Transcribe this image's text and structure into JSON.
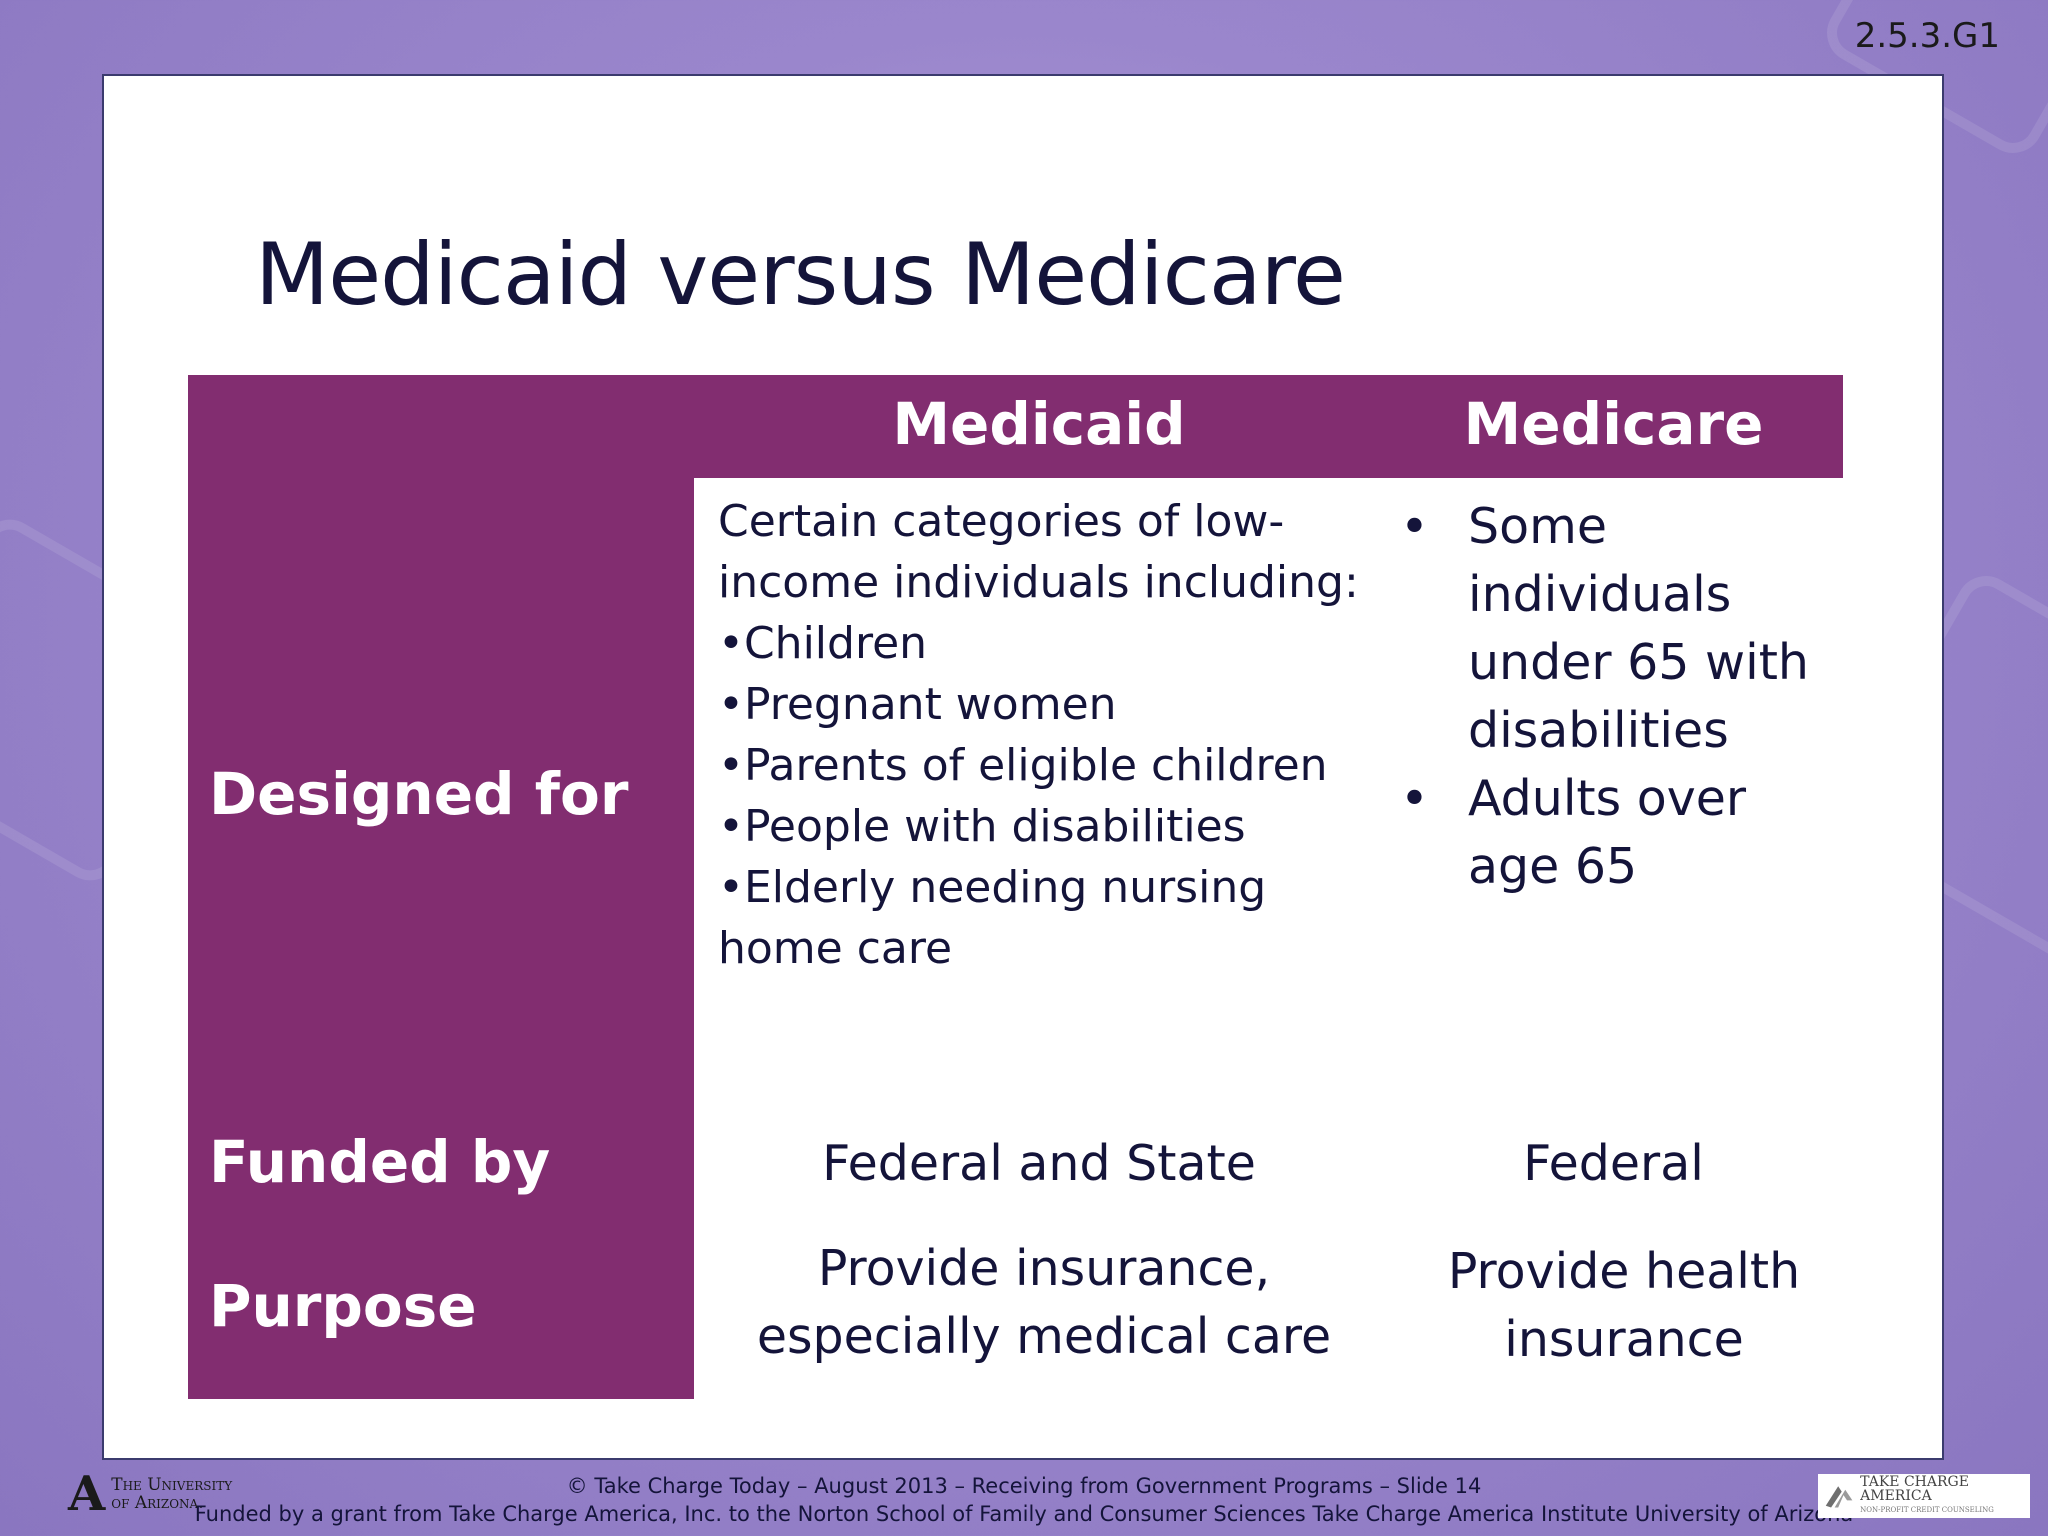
{
  "slide_id": "2.5.3.G1",
  "title": "Medicaid versus Medicare",
  "columns": {
    "medicaid": "Medicaid",
    "medicare": "Medicare"
  },
  "rows": {
    "designed_for": "Designed for",
    "funded_by": "Funded by",
    "purpose": "Purpose"
  },
  "medicaid_designed_for": [
    "Certain categories of low-",
    "income individuals including:",
    "•Children",
    "•Pregnant women",
    "•Parents of eligible children",
    "•People with disabilities",
    "•Elderly needing nursing",
    "home care"
  ],
  "medicare_designed_for": {
    "bullet": "•",
    "item1": [
      "Some",
      "individuals",
      "under 65 with",
      "disabilities"
    ],
    "item2": [
      "Adults over",
      "age 65"
    ]
  },
  "medicaid_funded_by": "Federal and State",
  "medicare_funded_by": "Federal",
  "medicaid_purpose": [
    "Provide insurance,",
    "especially medical care"
  ],
  "medicare_purpose": [
    "Provide health",
    "insurance"
  ],
  "footer": {
    "line1": "© Take Charge Today – August 2013 – Receiving from Government Programs – Slide 14",
    "line2": "Funded by a grant from Take Charge America, Inc. to the Norton School of Family and Consumer Sciences Take Charge America Institute University of Arizona"
  },
  "logos": {
    "ua_mark": "A",
    "ua_line1": "The University",
    "ua_line2": "of Arizona.",
    "tca_name": "TAKE CHARGE AMERICA",
    "tca_sub": "NON-PROFIT CREDIT COUNSELING"
  }
}
